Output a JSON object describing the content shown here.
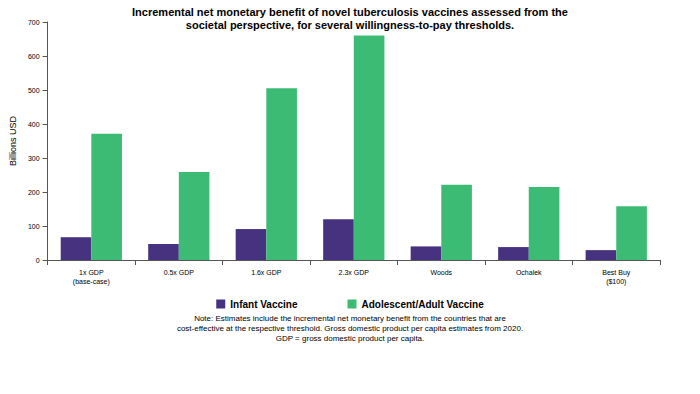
{
  "chart_data": {
    "type": "bar",
    "title": "Incremental net monetary benefit of novel tuberculosis vaccines assessed from the\nsocietal perspective, for several willingness-to-pay thresholds.",
    "y_label": "Billions USD",
    "categories": [
      "1x GDP\n(base-case)",
      "0.5x GDP",
      "1.6x GDP",
      "2.3x GDP",
      "Woods",
      "Ochalek",
      "Best Buy\n($100)"
    ],
    "series": [
      {
        "name": "Infant Vaccine",
        "color": "#46327e",
        "values": [
          67,
          47,
          91,
          120,
          40,
          38,
          29
        ]
      },
      {
        "name": "Adolescent/Adult Vaccine",
        "color": "#3cbb75",
        "values": [
          371,
          259,
          505,
          660,
          221,
          215,
          158
        ]
      }
    ],
    "ylim": [
      0,
      700
    ],
    "yticks": [
      0,
      100,
      200,
      300,
      400,
      500,
      600,
      700
    ],
    "grid": false,
    "legend": "bottom",
    "note": "Note: Estimates include the incremental net monetary benefit from the countries that are\ncost-effective at the respective threshold. Gross domestic product per capita estimates from 2020.\nGDP = gross domestic product per capita."
  }
}
